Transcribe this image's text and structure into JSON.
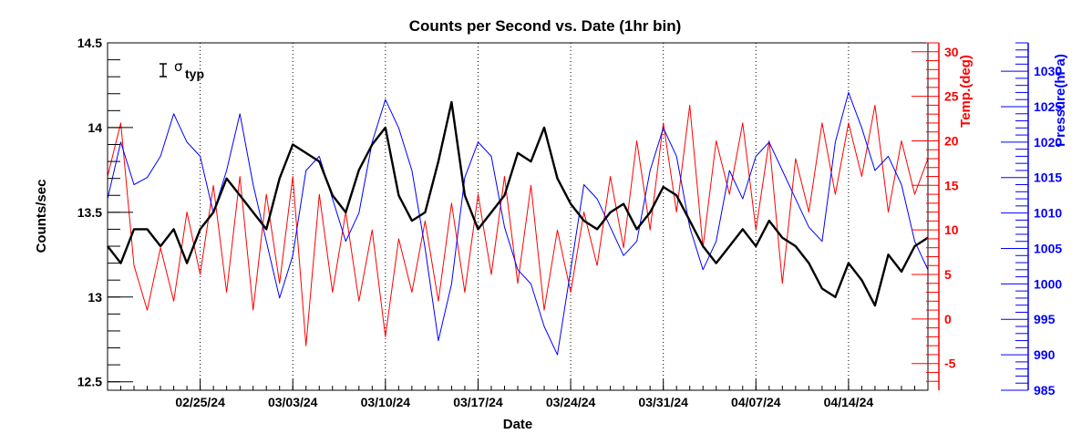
{
  "chart_data": {
    "type": "line",
    "title": "Counts per Second vs. Date (1hr bin)",
    "xlabel": "Date",
    "xlim": [
      "2024-02-18",
      "2024-04-20"
    ],
    "x_ticks": [
      "02/25/24",
      "03/03/24",
      "03/10/24",
      "03/17/24",
      "03/24/24",
      "03/31/24",
      "04/07/24",
      "04/14/24"
    ],
    "x_tick_dates": [
      "2024-02-25",
      "2024-03-03",
      "2024-03-10",
      "2024-03-17",
      "2024-03-24",
      "2024-03-31",
      "2024-04-07",
      "2024-04-14"
    ],
    "vertical_gridlines": true,
    "annotation": {
      "symbol": "σ",
      "subscript": "typ"
    },
    "axes": {
      "left": {
        "label": "Counts/sec",
        "ylim": [
          12.45,
          14.5
        ],
        "ticks": [
          "12.5",
          "13",
          "13.5",
          "14",
          "14.5"
        ],
        "color": "#000000"
      },
      "right1": {
        "label": "Temp.(deg)",
        "ylim": [
          -8,
          31
        ],
        "ticks": [
          "-5",
          "0",
          "5",
          "10",
          "15",
          "20",
          "25",
          "30"
        ],
        "color": "#ff0000"
      },
      "right2": {
        "label": "Pressure(hPa)",
        "ylim": [
          985,
          1034
        ],
        "ticks": [
          "985",
          "990",
          "995",
          "1000",
          "1005",
          "1010",
          "1015",
          "1020",
          "1025",
          "1030"
        ],
        "color": "#0000ff"
      }
    },
    "series": [
      {
        "axis": "left",
        "color": "#000000",
        "dates": [
          "2024-02-18",
          "2024-02-19",
          "2024-02-20",
          "2024-02-21",
          "2024-02-22",
          "2024-02-23",
          "2024-02-24",
          "2024-02-25",
          "2024-02-26",
          "2024-02-27",
          "2024-02-28",
          "2024-02-29",
          "2024-03-01",
          "2024-03-02",
          "2024-03-03",
          "2024-03-04",
          "2024-03-05",
          "2024-03-06",
          "2024-03-07",
          "2024-03-08",
          "2024-03-09",
          "2024-03-10",
          "2024-03-11",
          "2024-03-12",
          "2024-03-13",
          "2024-03-14",
          "2024-03-15",
          "2024-03-16",
          "2024-03-17",
          "2024-03-18",
          "2024-03-19",
          "2024-03-20",
          "2024-03-21",
          "2024-03-22",
          "2024-03-23",
          "2024-03-24",
          "2024-03-25",
          "2024-03-26",
          "2024-03-27",
          "2024-03-28",
          "2024-03-29",
          "2024-03-30",
          "2024-03-31",
          "2024-04-01",
          "2024-04-02",
          "2024-04-03",
          "2024-04-04",
          "2024-04-05",
          "2024-04-06",
          "2024-04-07",
          "2024-04-08",
          "2024-04-09",
          "2024-04-10",
          "2024-04-11",
          "2024-04-12",
          "2024-04-13",
          "2024-04-14",
          "2024-04-15",
          "2024-04-16",
          "2024-04-17",
          "2024-04-18",
          "2024-04-19",
          "2024-04-20"
        ],
        "values": [
          13.3,
          13.2,
          13.4,
          13.4,
          13.3,
          13.4,
          13.2,
          13.4,
          13.5,
          13.7,
          13.6,
          13.5,
          13.4,
          13.7,
          13.9,
          13.85,
          13.8,
          13.6,
          13.5,
          13.75,
          13.9,
          14.0,
          13.6,
          13.45,
          13.5,
          13.8,
          14.15,
          13.6,
          13.4,
          13.5,
          13.6,
          13.85,
          13.8,
          14.0,
          13.7,
          13.55,
          13.45,
          13.4,
          13.5,
          13.55,
          13.4,
          13.5,
          13.65,
          13.6,
          13.45,
          13.3,
          13.2,
          13.3,
          13.4,
          13.3,
          13.45,
          13.35,
          13.3,
          13.2,
          13.05,
          13.0,
          13.2,
          13.1,
          12.95,
          13.25,
          13.15,
          13.3,
          13.35
        ]
      },
      {
        "axis": "right1",
        "color": "#ff0000",
        "dates": [
          "2024-02-18",
          "2024-02-19",
          "2024-02-20",
          "2024-02-21",
          "2024-02-22",
          "2024-02-23",
          "2024-02-24",
          "2024-02-25",
          "2024-02-26",
          "2024-02-27",
          "2024-02-28",
          "2024-02-29",
          "2024-03-01",
          "2024-03-02",
          "2024-03-03",
          "2024-03-04",
          "2024-03-05",
          "2024-03-06",
          "2024-03-07",
          "2024-03-08",
          "2024-03-09",
          "2024-03-10",
          "2024-03-11",
          "2024-03-12",
          "2024-03-13",
          "2024-03-14",
          "2024-03-15",
          "2024-03-16",
          "2024-03-17",
          "2024-03-18",
          "2024-03-19",
          "2024-03-20",
          "2024-03-21",
          "2024-03-22",
          "2024-03-23",
          "2024-03-24",
          "2024-03-25",
          "2024-03-26",
          "2024-03-27",
          "2024-03-28",
          "2024-03-29",
          "2024-03-30",
          "2024-03-31",
          "2024-04-01",
          "2024-04-02",
          "2024-04-03",
          "2024-04-04",
          "2024-04-05",
          "2024-04-06",
          "2024-04-07",
          "2024-04-08",
          "2024-04-09",
          "2024-04-10",
          "2024-04-11",
          "2024-04-12",
          "2024-04-13",
          "2024-04-14",
          "2024-04-15",
          "2024-04-16",
          "2024-04-17",
          "2024-04-18",
          "2024-04-19",
          "2024-04-20"
        ],
        "values": [
          16,
          22,
          6,
          1,
          8,
          2,
          12,
          5,
          15,
          3,
          16,
          1,
          14,
          4,
          16,
          -3,
          14,
          3,
          12,
          2,
          10,
          -2,
          9,
          3,
          11,
          2,
          13,
          3,
          14,
          5,
          16,
          4,
          15,
          1,
          10,
          3,
          12,
          6,
          16,
          8,
          20,
          10,
          22,
          12,
          24,
          8,
          20,
          14,
          22,
          10,
          20,
          4,
          18,
          12,
          22,
          14,
          22,
          16,
          24,
          12,
          20,
          14,
          18
        ]
      },
      {
        "axis": "right2",
        "color": "#0000ff",
        "dates": [
          "2024-02-18",
          "2024-02-19",
          "2024-02-20",
          "2024-02-21",
          "2024-02-22",
          "2024-02-23",
          "2024-02-24",
          "2024-02-25",
          "2024-02-26",
          "2024-02-27",
          "2024-02-28",
          "2024-02-29",
          "2024-03-01",
          "2024-03-02",
          "2024-03-03",
          "2024-03-04",
          "2024-03-05",
          "2024-03-06",
          "2024-03-07",
          "2024-03-08",
          "2024-03-09",
          "2024-03-10",
          "2024-03-11",
          "2024-03-12",
          "2024-03-13",
          "2024-03-14",
          "2024-03-15",
          "2024-03-16",
          "2024-03-17",
          "2024-03-18",
          "2024-03-19",
          "2024-03-20",
          "2024-03-21",
          "2024-03-22",
          "2024-03-23",
          "2024-03-24",
          "2024-03-25",
          "2024-03-26",
          "2024-03-27",
          "2024-03-28",
          "2024-03-29",
          "2024-03-30",
          "2024-03-31",
          "2024-04-01",
          "2024-04-02",
          "2024-04-03",
          "2024-04-04",
          "2024-04-05",
          "2024-04-06",
          "2024-04-07",
          "2024-04-08",
          "2024-04-09",
          "2024-04-10",
          "2024-04-11",
          "2024-04-12",
          "2024-04-13",
          "2024-04-14",
          "2024-04-15",
          "2024-04-16",
          "2024-04-17",
          "2024-04-18",
          "2024-04-19",
          "2024-04-20"
        ],
        "values": [
          1012,
          1020,
          1014,
          1015,
          1018,
          1024,
          1020,
          1018,
          1010,
          1016,
          1024,
          1014,
          1006,
          998,
          1004,
          1016,
          1018,
          1012,
          1006,
          1010,
          1020,
          1026,
          1022,
          1016,
          1005,
          992,
          1000,
          1015,
          1020,
          1018,
          1008,
          1002,
          1000,
          994,
          990,
          1002,
          1014,
          1012,
          1008,
          1004,
          1006,
          1016,
          1022,
          1018,
          1008,
          1002,
          1006,
          1016,
          1012,
          1018,
          1020,
          1016,
          1012,
          1008,
          1006,
          1020,
          1027,
          1022,
          1016,
          1018,
          1014,
          1006,
          1002
        ]
      }
    ]
  }
}
